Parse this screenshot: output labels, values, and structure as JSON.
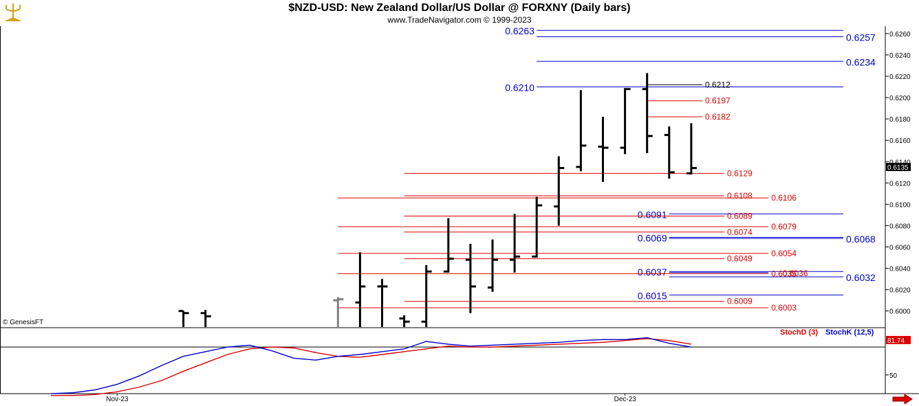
{
  "header": {
    "title": "$NZD-USD:  New Zealand Dollar/US Dollar @ FORXNY  (Daily bars)",
    "subtitle": "www.TradeNavigator.com © 1999-2023"
  },
  "icons": {
    "logo": "gold-pitchfork-logo-icon",
    "scroll": "red-right-arrow-icon"
  },
  "colors": {
    "bars": "#000000",
    "gray_bar": "#808080",
    "fib_red": "#dd0000",
    "fib_blue": "#0000cc",
    "stoch_d": "#dd0000",
    "stoch_k": "#0000cc"
  },
  "chart_data": [
    {
      "type": "ohlc",
      "title": "$NZD-USD:  New Zealand Dollar/US Dollar @ FORXNY  (Daily bars)",
      "xlabel": "",
      "ylabel": "",
      "ylim": [
        0.5985,
        0.6267
      ],
      "yticks": [
        "0.6260",
        "0.6240",
        "0.6220",
        "0.6200",
        "0.6180",
        "0.6160",
        "0.6140",
        "0.6120",
        "0.6100",
        "0.6080",
        "0.6060",
        "0.6040",
        "0.6020",
        "0.6000"
      ],
      "last_price": "0.6135",
      "x_tick_labels": [
        {
          "label": "Nov-23",
          "bar": 3
        },
        {
          "label": "Dec-23",
          "bar": 26
        }
      ],
      "copyright": "© GenesisFT",
      "bars": [
        {
          "i": 6,
          "o": 0.6,
          "h": 0.6,
          "l": 0.5985,
          "c": 0.5998
        },
        {
          "i": 7,
          "o": 0.5998,
          "h": 0.6001,
          "l": 0.5985,
          "c": 0.5995
        },
        {
          "i": 13,
          "o": 0.601,
          "h": 0.6013,
          "l": 0.5985,
          "c": 0.6011,
          "gray": true
        },
        {
          "i": 14,
          "o": 0.6008,
          "h": 0.6055,
          "l": 0.5985,
          "c": 0.6023
        },
        {
          "i": 15,
          "o": 0.6023,
          "h": 0.603,
          "l": 0.5985,
          "c": 0.6023
        },
        {
          "i": 16,
          "o": 0.5993,
          "h": 0.5996,
          "l": 0.5985,
          "c": 0.599
        },
        {
          "i": 17,
          "o": 0.599,
          "h": 0.6043,
          "l": 0.5985,
          "c": 0.6037
        },
        {
          "i": 18,
          "o": 0.6037,
          "h": 0.6087,
          "l": 0.6036,
          "c": 0.6049
        },
        {
          "i": 19,
          "o": 0.6048,
          "h": 0.6063,
          "l": 0.5998,
          "c": 0.6023
        },
        {
          "i": 20,
          "o": 0.6022,
          "h": 0.6067,
          "l": 0.6018,
          "c": 0.6048
        },
        {
          "i": 21,
          "o": 0.6048,
          "h": 0.6091,
          "l": 0.6036,
          "c": 0.6051
        },
        {
          "i": 22,
          "o": 0.6051,
          "h": 0.6107,
          "l": 0.605,
          "c": 0.6099
        },
        {
          "i": 23,
          "o": 0.6098,
          "h": 0.6145,
          "l": 0.608,
          "c": 0.6134
        },
        {
          "i": 24,
          "o": 0.6135,
          "h": 0.6207,
          "l": 0.6131,
          "c": 0.6155
        },
        {
          "i": 25,
          "o": 0.6154,
          "h": 0.6182,
          "l": 0.6121,
          "c": 0.6153
        },
        {
          "i": 26,
          "o": 0.6153,
          "h": 0.6209,
          "l": 0.6147,
          "c": 0.6208
        },
        {
          "i": 27,
          "o": 0.6208,
          "h": 0.6223,
          "l": 0.6148,
          "c": 0.6164
        },
        {
          "i": 28,
          "o": 0.6165,
          "h": 0.6173,
          "l": 0.6124,
          "c": 0.613
        },
        {
          "i": 29,
          "o": 0.6129,
          "h": 0.6176,
          "l": 0.6128,
          "c": 0.6134
        }
      ],
      "fib_levels": [
        {
          "value": 0.6263,
          "label": "0.6263",
          "color": "blue",
          "from_bar": 22.0,
          "to_bar": 37.5,
          "label_side": "left"
        },
        {
          "value": 0.6257,
          "label": "0.6257",
          "color": "blue",
          "from_bar": 22.0,
          "to_bar": 37.5,
          "label_side": "right"
        },
        {
          "value": 0.6234,
          "label": "0.6234",
          "color": "blue",
          "from_bar": 22.0,
          "to_bar": 37.5,
          "label_side": "right"
        },
        {
          "value": 0.621,
          "label": "0.6210",
          "color": "blue",
          "from_bar": 22.0,
          "to_bar": 37.5,
          "label_side": "left"
        },
        {
          "value": 0.6212,
          "label": "0.6212",
          "color": "black",
          "from_bar": 27.0,
          "to_bar": 29.5,
          "label_side": "right"
        },
        {
          "value": 0.6197,
          "label": "0.6197",
          "color": "red",
          "from_bar": 27.0,
          "to_bar": 29.5,
          "label_side": "right"
        },
        {
          "value": 0.6182,
          "label": "0.6182",
          "color": "red",
          "from_bar": 27.0,
          "to_bar": 29.5,
          "label_side": "right"
        },
        {
          "value": 0.6129,
          "label": "0.6129",
          "color": "red",
          "from_bar": 16.0,
          "to_bar": 30.5,
          "label_side": "right"
        },
        {
          "value": 0.6108,
          "label": "0.6108",
          "color": "red",
          "from_bar": 16.0,
          "to_bar": 30.5,
          "label_side": "right"
        },
        {
          "value": 0.6106,
          "label": "0.6106",
          "color": "red",
          "from_bar": 13.0,
          "to_bar": 32.5,
          "label_side": "right"
        },
        {
          "value": 0.6091,
          "label": "0.6091",
          "color": "blue",
          "from_bar": 28.0,
          "to_bar": 37.5,
          "label_side": "left"
        },
        {
          "value": 0.6089,
          "label": "0.6089",
          "color": "red",
          "from_bar": 16.0,
          "to_bar": 30.5,
          "label_side": "right"
        },
        {
          "value": 0.6079,
          "label": "0.6079",
          "color": "red",
          "from_bar": 13.0,
          "to_bar": 32.5,
          "label_side": "right"
        },
        {
          "value": 0.6074,
          "label": "0.6074",
          "color": "red",
          "from_bar": 16.0,
          "to_bar": 30.5,
          "label_side": "right"
        },
        {
          "value": 0.6069,
          "label": "0.6069",
          "color": "blue",
          "from_bar": 28.0,
          "to_bar": 37.5,
          "label_side": "left"
        },
        {
          "value": 0.6068,
          "label": "0.6068",
          "color": "blue",
          "from_bar": 28.0,
          "to_bar": 37.5,
          "label_side": "right"
        },
        {
          "value": 0.6054,
          "label": "0.6054",
          "color": "red",
          "from_bar": 13.0,
          "to_bar": 32.5,
          "label_side": "right"
        },
        {
          "value": 0.6049,
          "label": "0.6049",
          "color": "red",
          "from_bar": 16.0,
          "to_bar": 30.5,
          "label_side": "right"
        },
        {
          "value": 0.6037,
          "label": "0.6037",
          "color": "blue",
          "from_bar": 28.0,
          "to_bar": 37.5,
          "label_side": "left"
        },
        {
          "value": 0.6035,
          "label": "0.6035",
          "color": "red",
          "from_bar": 13.0,
          "to_bar": 32.5,
          "label_side": "right"
        },
        {
          "value": 0.6036,
          "label": "0.6036",
          "color": "blue",
          "from_bar": 28.0,
          "to_bar": 32.5,
          "label_side": "none"
        },
        {
          "value": 0.6032,
          "label": "0.6032",
          "color": "blue",
          "from_bar": 28.0,
          "to_bar": 37.5,
          "label_side": "right"
        },
        {
          "value": 0.6015,
          "label": "0.6015",
          "color": "blue",
          "from_bar": 28.0,
          "to_bar": 37.5,
          "label_side": "left"
        },
        {
          "value": 0.6009,
          "label": "0.6009",
          "color": "red",
          "from_bar": 16.0,
          "to_bar": 30.5,
          "label_side": "right"
        },
        {
          "value": 0.6003,
          "label": "0.6003",
          "color": "red",
          "from_bar": 13.0,
          "to_bar": 32.5,
          "label_side": "right"
        }
      ]
    },
    {
      "type": "line",
      "title": "",
      "ylim": [
        30,
        100
      ],
      "yticks": [
        "50"
      ],
      "legend": [
        "StochD (3)",
        "StochK (12,5)"
      ],
      "legend_position": "top-right",
      "last_value_label": "81.74",
      "reference_line": 80,
      "series": [
        {
          "name": "StochD (3)",
          "key": "d",
          "x": [
            0,
            1,
            2,
            3,
            4,
            5,
            6,
            7,
            8,
            9,
            10,
            11,
            12,
            13,
            14,
            15,
            16,
            17,
            18,
            19,
            20,
            21,
            22,
            23,
            24,
            25,
            26,
            27,
            28,
            29
          ],
          "values": [
            28,
            28,
            29,
            32,
            37,
            44,
            54,
            63,
            72,
            78,
            80,
            79,
            74,
            70,
            69,
            72,
            75,
            78,
            81,
            80,
            80,
            81,
            82,
            83,
            84,
            85,
            87,
            89,
            87,
            83
          ]
        },
        {
          "name": "StochK (12,5)",
          "key": "k",
          "x": [
            0,
            1,
            2,
            3,
            4,
            5,
            6,
            7,
            8,
            9,
            10,
            11,
            12,
            13,
            14,
            15,
            16,
            17,
            18,
            19,
            20,
            21,
            22,
            23,
            24,
            25,
            26,
            27,
            28,
            29
          ],
          "values": [
            30,
            31,
            34,
            40,
            49,
            60,
            70,
            75,
            80,
            82,
            76,
            68,
            66,
            70,
            72,
            75,
            78,
            86,
            83,
            81,
            82,
            83,
            84,
            85,
            87,
            88,
            88,
            90,
            84,
            80
          ]
        }
      ]
    }
  ]
}
